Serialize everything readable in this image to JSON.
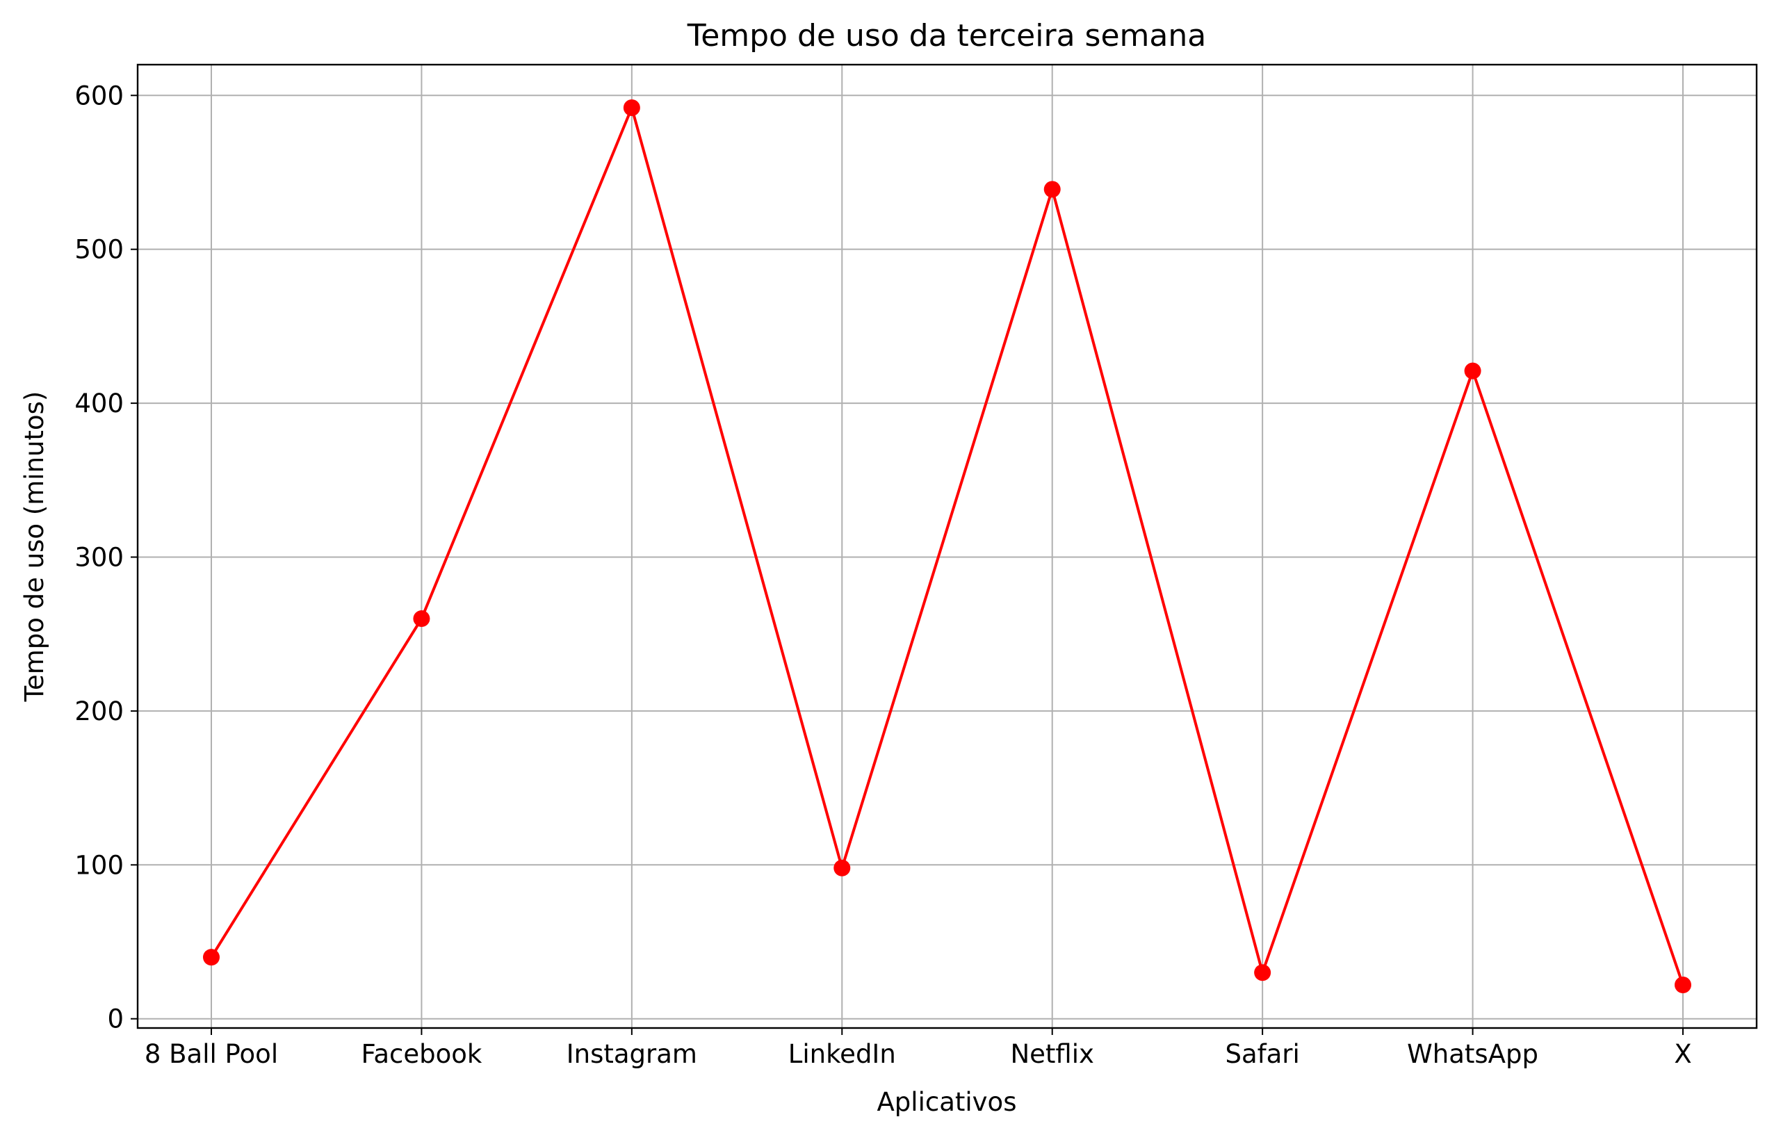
{
  "chart_data": {
    "type": "line",
    "title": "Tempo de uso da terceira semana",
    "xlabel": "Aplicativos",
    "ylabel": "Tempo de uso (minutos)",
    "categories": [
      "8 Ball Pool",
      "Facebook",
      "Instagram",
      "LinkedIn",
      "Netflix",
      "Safari",
      "WhatsApp",
      "X"
    ],
    "series": [
      {
        "values": [
          40,
          260,
          592,
          98,
          539,
          30,
          421,
          22
        ]
      }
    ],
    "yticks": [
      "0",
      "100",
      "200",
      "300",
      "400",
      "500",
      "600"
    ],
    "ylim": [
      -6,
      620
    ],
    "grid": true,
    "line_color": "#ff0000",
    "marker": "circle",
    "grid_color": "#b0b0b0"
  }
}
